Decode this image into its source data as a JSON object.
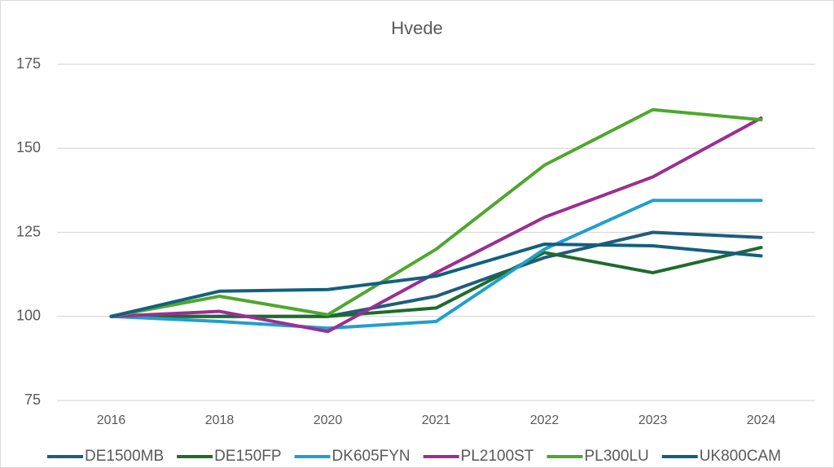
{
  "chart_data": {
    "type": "line",
    "title": "Hvede",
    "categories": [
      "2016",
      "2018",
      "2020",
      "2021",
      "2022",
      "2023",
      "2024"
    ],
    "series": [
      {
        "name": "DE1500MB",
        "color": "#1f5c7c",
        "values": [
          100,
          100,
          100,
          106,
          117.5,
          125,
          123.5
        ]
      },
      {
        "name": "DE150FP",
        "color": "#1f6b2c",
        "values": [
          100,
          100,
          100,
          102.5,
          119,
          113,
          120.5
        ]
      },
      {
        "name": "DK605FYN",
        "color": "#1f9fcf",
        "values": [
          100,
          98.5,
          96.5,
          98.5,
          120,
          134.5,
          134.5
        ]
      },
      {
        "name": "PL2100ST",
        "color": "#9b2f91",
        "values": [
          100,
          101.5,
          95.5,
          113,
          129.5,
          141.5,
          159
        ]
      },
      {
        "name": "PL300LU",
        "color": "#4ea72e",
        "values": [
          100,
          106,
          100.5,
          120,
          145,
          161.5,
          158.5
        ]
      },
      {
        "name": "UK800CAM",
        "color": "#12607e",
        "values": [
          100,
          107.5,
          108,
          112,
          121.5,
          121,
          118
        ]
      }
    ],
    "ylim": [
      75,
      175
    ],
    "yticks": [
      75,
      100,
      125,
      150,
      175
    ],
    "grid": true,
    "legend": "bottom"
  }
}
